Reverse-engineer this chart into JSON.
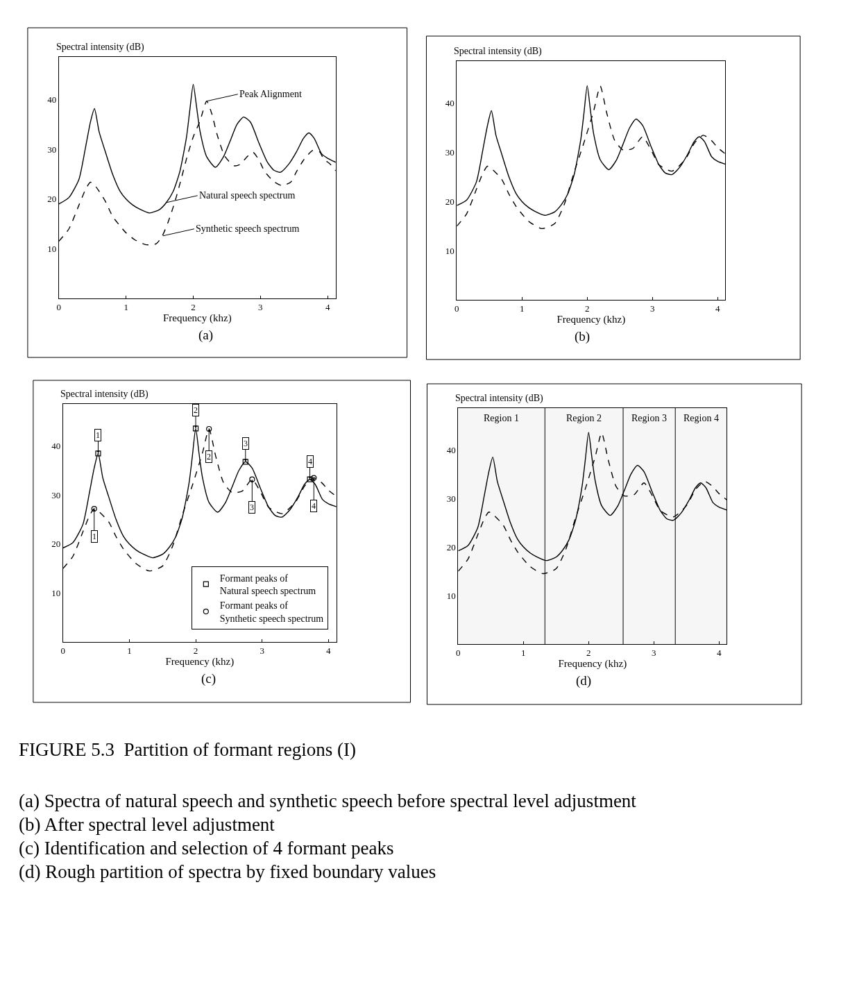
{
  "chart_data": [
    {
      "type": "line",
      "ylabel": "Spectral intensity (dB)",
      "xlabel": "Frequency (khz)",
      "xlim": [
        0,
        4.12
      ],
      "ylim": [
        0,
        48.6
      ],
      "xticks": [
        0,
        1,
        2,
        3,
        4
      ],
      "yticks": [
        10,
        20,
        30,
        40
      ],
      "grid": false,
      "marker": "none",
      "annotations": [
        "(a)",
        {
          "text": "Peak Alignment",
          "x": 2.2,
          "y": 39.7
        },
        {
          "text": "Natural speech spectrum",
          "x": 1.6,
          "y": 19.3
        },
        {
          "text": "Synthetic speech spectrum",
          "x": 1.55,
          "y": 12.6
        }
      ],
      "series": [
        {
          "color": "#000000",
          "line_style": "solid",
          "x": [
            0,
            0.15,
            0.3,
            0.4,
            0.47,
            0.53,
            0.6,
            0.69,
            0.8,
            0.91,
            1.0,
            1.1,
            1.2,
            1.35,
            1.5,
            1.6,
            1.7,
            1.8,
            1.9,
            1.95,
            2.0,
            2.05,
            2.1,
            2.2,
            2.33,
            2.45,
            2.55,
            2.65,
            2.75,
            2.85,
            2.98,
            3.1,
            3.2,
            3.3,
            3.42,
            3.54,
            3.64,
            3.72,
            3.8,
            3.91,
            4.0,
            4.12
          ],
          "values": [
            19,
            20.3,
            24,
            30.6,
            35.5,
            38.2,
            33.5,
            29.6,
            25,
            21.6,
            20,
            18.8,
            18,
            17.2,
            17.9,
            19.3,
            21.5,
            25.5,
            32.5,
            38,
            43.1,
            38.5,
            33.7,
            28.5,
            26.4,
            28.5,
            31.7,
            35,
            36.5,
            35.5,
            31.2,
            27.5,
            25.8,
            25.4,
            27,
            29.6,
            32.2,
            33.3,
            32.2,
            29.1,
            28.2,
            27.4
          ]
        },
        {
          "color": "#000000",
          "line_style": "dashed",
          "x": [
            0,
            0.15,
            0.3,
            0.4,
            0.47,
            0.55,
            0.69,
            0.8,
            0.91,
            1.0,
            1.13,
            1.3,
            1.45,
            1.54,
            1.63,
            1.73,
            1.82,
            1.91,
            2.0,
            2.1,
            2.2,
            2.28,
            2.35,
            2.47,
            2.61,
            2.7,
            2.8,
            2.89,
            2.98,
            3.06,
            3.2,
            3.32,
            3.45,
            3.54,
            3.65,
            3.78,
            3.88,
            3.94,
            4.04,
            4.12
          ],
          "values": [
            11.5,
            14,
            18.8,
            22,
            23.4,
            22.5,
            19.6,
            16.5,
            14.6,
            13.2,
            11.8,
            10.8,
            11,
            12.6,
            15.5,
            19.6,
            24,
            28.6,
            32.5,
            35.7,
            39.7,
            37,
            33.2,
            28.6,
            26.7,
            27,
            28.5,
            29.4,
            27.8,
            25.6,
            23.5,
            22.7,
            23.4,
            25.6,
            28,
            29.8,
            29.5,
            28.1,
            27,
            25.7
          ]
        }
      ]
    },
    {
      "type": "line",
      "ylabel": "Spectral intensity (dB)",
      "xlabel": "Frequency (khz)",
      "xlim": [
        0,
        4.12
      ],
      "ylim": [
        0,
        48.6
      ],
      "xticks": [
        0,
        1,
        2,
        3,
        4
      ],
      "yticks": [
        10,
        20,
        30,
        40
      ],
      "grid": false,
      "marker": "none",
      "annotations": [
        "(b)"
      ],
      "series": [
        {
          "color": "#000000",
          "line_style": "solid",
          "x": [
            0,
            0.15,
            0.3,
            0.4,
            0.47,
            0.53,
            0.6,
            0.69,
            0.8,
            0.91,
            1.0,
            1.1,
            1.2,
            1.35,
            1.5,
            1.6,
            1.7,
            1.8,
            1.9,
            1.95,
            2.0,
            2.05,
            2.1,
            2.2,
            2.33,
            2.45,
            2.55,
            2.65,
            2.75,
            2.85,
            2.98,
            3.1,
            3.2,
            3.3,
            3.42,
            3.54,
            3.64,
            3.72,
            3.8,
            3.91,
            4.0,
            4.12
          ],
          "values": [
            19.2,
            20.3,
            24,
            30.6,
            35.5,
            38.5,
            33.5,
            29.6,
            25,
            21.6,
            20,
            18.8,
            18,
            17.2,
            17.9,
            19.3,
            21.5,
            25.5,
            32.5,
            38,
            43.6,
            38.5,
            33.7,
            28.5,
            26.5,
            28.5,
            31.7,
            35,
            36.8,
            35.5,
            31.2,
            27.5,
            25.8,
            25.5,
            27,
            29.6,
            32.2,
            33.2,
            32.2,
            29.1,
            28.2,
            27.6
          ]
        },
        {
          "color": "#000000",
          "line_style": "dashed",
          "x": [
            0,
            0.15,
            0.3,
            0.4,
            0.47,
            0.55,
            0.69,
            0.8,
            0.91,
            1.1,
            1.3,
            1.5,
            1.65,
            1.8,
            1.95,
            2.1,
            2.2,
            2.3,
            2.42,
            2.55,
            2.7,
            2.85,
            2.98,
            3.1,
            3.3,
            3.5,
            3.65,
            3.78,
            3.9,
            4.0,
            4.12
          ],
          "values": [
            15,
            17.5,
            22.5,
            25.8,
            27.2,
            26.5,
            24.5,
            21.5,
            19,
            16,
            14.5,
            15.5,
            19.5,
            26,
            32,
            38.5,
            43.5,
            38,
            32.5,
            30.5,
            30.8,
            33.2,
            30.5,
            27.5,
            26.2,
            28.5,
            32,
            33.5,
            32.5,
            31,
            29.7
          ]
        }
      ]
    },
    {
      "type": "line",
      "ylabel": "Spectral intensity (dB)",
      "xlabel": "Frequency (khz)",
      "xlim": [
        0,
        4.12
      ],
      "ylim": [
        0,
        48.6
      ],
      "xticks": [
        0,
        1,
        2,
        3,
        4
      ],
      "yticks": [
        10,
        20,
        30,
        40
      ],
      "grid": false,
      "marker": "none",
      "legend": "bottom right",
      "annotations": [
        "(c)",
        {
          "text": "1",
          "x": 0.53,
          "y": 38.5
        },
        {
          "text": "2",
          "x": 2.0,
          "y": 43.6
        },
        {
          "text": "3",
          "x": 2.75,
          "y": 36.8
        },
        {
          "text": "4",
          "x": 3.72,
          "y": 33.2
        },
        {
          "text": "1",
          "x": 0.47,
          "y": 27.2
        },
        {
          "text": "2",
          "x": 2.2,
          "y": 43.5
        },
        {
          "text": "3",
          "x": 2.85,
          "y": 33.2
        },
        {
          "text": "4",
          "x": 3.78,
          "y": 33.5
        }
      ],
      "series": [
        {
          "color": "#000000",
          "line_style": "solid",
          "x": [
            0,
            0.15,
            0.3,
            0.4,
            0.47,
            0.53,
            0.6,
            0.69,
            0.8,
            0.91,
            1.0,
            1.1,
            1.2,
            1.35,
            1.5,
            1.6,
            1.7,
            1.8,
            1.9,
            1.95,
            2.0,
            2.05,
            2.1,
            2.2,
            2.33,
            2.45,
            2.55,
            2.65,
            2.75,
            2.85,
            2.98,
            3.1,
            3.2,
            3.3,
            3.42,
            3.54,
            3.64,
            3.72,
            3.8,
            3.91,
            4.0,
            4.12
          ],
          "values": [
            19.2,
            20.3,
            24,
            30.6,
            35.5,
            38.5,
            33.5,
            29.6,
            25,
            21.6,
            20,
            18.8,
            18,
            17.2,
            17.9,
            19.3,
            21.5,
            25.5,
            32.5,
            38,
            43.6,
            38.5,
            33.7,
            28.5,
            26.5,
            28.5,
            31.7,
            35,
            36.8,
            35.5,
            31.2,
            27.5,
            25.8,
            25.5,
            27,
            29.6,
            32.2,
            33.2,
            32.2,
            29.1,
            28.2,
            27.6
          ]
        },
        {
          "color": "#000000",
          "line_style": "dashed",
          "x": [
            0,
            0.15,
            0.3,
            0.4,
            0.47,
            0.55,
            0.69,
            0.8,
            0.91,
            1.1,
            1.3,
            1.5,
            1.65,
            1.8,
            1.95,
            2.1,
            2.2,
            2.3,
            2.42,
            2.55,
            2.7,
            2.85,
            2.98,
            3.1,
            3.3,
            3.5,
            3.65,
            3.78,
            3.9,
            4.0,
            4.12
          ],
          "values": [
            15,
            17.5,
            22.5,
            25.8,
            27.2,
            26.5,
            24.5,
            21.5,
            19,
            16,
            14.5,
            15.5,
            19.5,
            26,
            32,
            38.5,
            43.5,
            38,
            32.5,
            30.5,
            30.8,
            33.2,
            30.5,
            27.5,
            26.2,
            28.5,
            32,
            33.5,
            32.5,
            31,
            29.7
          ]
        },
        {
          "type": "scatter",
          "marker": "square",
          "name": "Formant peaks of\nNatural speech spectrum",
          "color": "#000000",
          "x": [
            0.53,
            2.0,
            2.75,
            3.72
          ],
          "values": [
            38.5,
            43.6,
            36.8,
            33.2
          ]
        },
        {
          "type": "scatter",
          "marker": "circle",
          "name": "Formant peaks of\nSynthetic speech spectrum",
          "color": "#000000",
          "x": [
            0.47,
            2.2,
            2.85,
            3.78
          ],
          "values": [
            27.2,
            43.5,
            33.2,
            33.5
          ]
        }
      ]
    },
    {
      "type": "line",
      "ylabel": "Spectral intensity (dB)",
      "xlabel": "Frequency (khz)",
      "xlim": [
        0,
        4.12
      ],
      "ylim": [
        0,
        48.6
      ],
      "xticks": [
        0,
        1,
        2,
        3,
        4
      ],
      "yticks": [
        10,
        20,
        30,
        40
      ],
      "grid": false,
      "marker": "none",
      "bands": [
        {
          "axis": "x",
          "from": 0,
          "to": 1.33,
          "label": "Region 1",
          "color": "#f6f6f6"
        },
        {
          "axis": "x",
          "from": 1.33,
          "to": 2.53,
          "label": "Region 2",
          "color": "#f6f6f6"
        },
        {
          "axis": "x",
          "from": 2.53,
          "to": 3.33,
          "label": "Region 3",
          "color": "#f6f6f6"
        },
        {
          "axis": "x",
          "from": 3.33,
          "to": 4.12,
          "label": "Region 4",
          "color": "#f6f6f6"
        }
      ],
      "ref_lines": [
        {
          "axis": "x",
          "value": 1.33
        },
        {
          "axis": "x",
          "value": 2.53
        },
        {
          "axis": "x",
          "value": 3.33
        }
      ],
      "annotations": [
        "(d)",
        "FIGURE 5.3  Partition of formant regions (I)",
        "(a) Spectra of natural speech and synthetic speech before spectral level adjustment",
        "(b) After spectral level adjustment",
        "(c) Identification and selection of 4 formant peaks",
        "(d) Rough partition of spectra by fixed boundary values"
      ],
      "series": [
        {
          "color": "#000000",
          "line_style": "solid",
          "x": [
            0,
            0.15,
            0.3,
            0.4,
            0.47,
            0.53,
            0.6,
            0.69,
            0.8,
            0.91,
            1.0,
            1.1,
            1.2,
            1.35,
            1.5,
            1.6,
            1.7,
            1.8,
            1.9,
            1.95,
            2.0,
            2.05,
            2.1,
            2.2,
            2.33,
            2.45,
            2.55,
            2.65,
            2.75,
            2.85,
            2.98,
            3.1,
            3.2,
            3.3,
            3.42,
            3.54,
            3.64,
            3.72,
            3.8,
            3.91,
            4.0,
            4.12
          ],
          "values": [
            19.2,
            20.3,
            24,
            30.6,
            35.5,
            38.5,
            33.5,
            29.6,
            25,
            21.6,
            20,
            18.8,
            18,
            17.2,
            17.9,
            19.3,
            21.5,
            25.5,
            32.5,
            38,
            43.6,
            38.5,
            33.7,
            28.5,
            26.5,
            28.5,
            31.7,
            35,
            36.8,
            35.5,
            31.2,
            27.5,
            25.8,
            25.5,
            27,
            29.6,
            32.2,
            33.2,
            32.2,
            29.1,
            28.2,
            27.6
          ]
        },
        {
          "color": "#000000",
          "line_style": "dashed",
          "x": [
            0,
            0.15,
            0.3,
            0.4,
            0.47,
            0.55,
            0.69,
            0.8,
            0.91,
            1.1,
            1.3,
            1.5,
            1.65,
            1.8,
            1.95,
            2.1,
            2.2,
            2.3,
            2.42,
            2.55,
            2.7,
            2.85,
            2.98,
            3.1,
            3.3,
            3.5,
            3.65,
            3.78,
            3.9,
            4.0,
            4.12
          ],
          "values": [
            15,
            17.5,
            22.5,
            25.8,
            27.2,
            26.5,
            24.5,
            21.5,
            19,
            16,
            14.5,
            15.5,
            19.5,
            26,
            32,
            38.5,
            43.5,
            38,
            32.5,
            30.5,
            30.8,
            33.2,
            30.5,
            27.5,
            26.2,
            28.5,
            32,
            33.5,
            32.5,
            31,
            29.7
          ]
        }
      ]
    }
  ]
}
